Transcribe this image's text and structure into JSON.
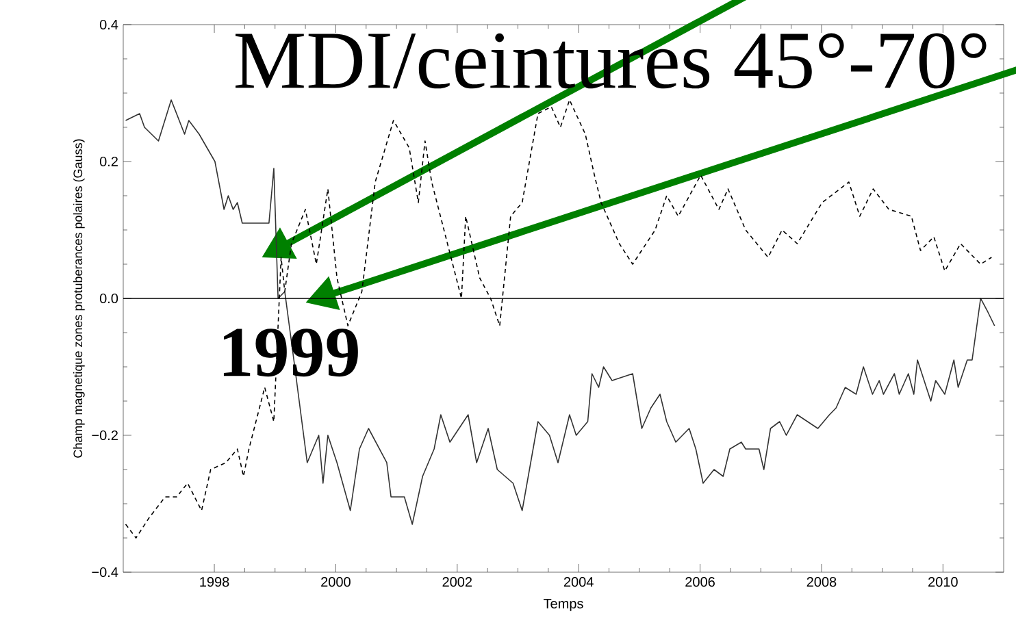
{
  "chart_data": {
    "type": "line",
    "title": "MDI/ceintures 45°-70°",
    "xlabel": "Temps",
    "ylabel": "Champ magnetique zones protuberances polaires (Gauss)",
    "xlim": [
      1996.5,
      2011
    ],
    "ylim": [
      -0.4,
      0.4
    ],
    "xticks": [
      1998,
      2000,
      2002,
      2004,
      2006,
      2008,
      2010
    ],
    "yticks": [
      {
        "value": -0.4,
        "label": "−0.4"
      },
      {
        "value": -0.2,
        "label": "−0.2"
      },
      {
        "value": 0,
        "label": "0.0"
      },
      {
        "value": 0.2,
        "label": "0.2"
      },
      {
        "value": 0.4,
        "label": "0.4"
      }
    ],
    "ref_lines": [
      {
        "axis": "y",
        "value": 0,
        "color": "#000000",
        "line_style": "solid"
      }
    ],
    "annotations": [
      {
        "text": "1999",
        "x": 1999.1,
        "y": 0.0
      }
    ],
    "grid": false,
    "marker": "none",
    "series": [
      {
        "color": "#333333",
        "line_style": "solid",
        "x": [
          1996.54,
          1996.77,
          1996.85,
          1997.08,
          1997.29,
          1997.51,
          1997.58,
          1997.75,
          1998.01,
          1998.16,
          1998.23,
          1998.31,
          1998.38,
          1998.46,
          1998.9,
          1998.98,
          1999.05,
          1999.16,
          1999.31,
          1999.53,
          1999.72,
          1999.79,
          1999.87,
          2000.02,
          2000.24,
          2000.39,
          2000.54,
          2000.84,
          2000.91,
          2001.13,
          2001.26,
          2001.43,
          2001.62,
          2001.73,
          2001.88,
          2002.03,
          2002.18,
          2002.32,
          2002.51,
          2002.66,
          2002.92,
          2003.07,
          2003.33,
          2003.52,
          2003.66,
          2003.85,
          2003.96,
          2004.15,
          2004.22,
          2004.33,
          2004.41,
          2004.55,
          2004.89,
          2005.04,
          2005.19,
          2005.34,
          2005.45,
          2005.6,
          2005.82,
          2005.93,
          2006.05,
          2006.23,
          2006.38,
          2006.49,
          2006.68,
          2006.75,
          2006.97,
          2007.05,
          2007.16,
          2007.31,
          2007.42,
          2007.6,
          2007.94,
          2008.13,
          2008.24,
          2008.39,
          2008.57,
          2008.69,
          2008.84,
          2008.95,
          2009.02,
          2009.2,
          2009.28,
          2009.43,
          2009.52,
          2009.58,
          2009.8,
          2009.88,
          2010.03,
          2010.18,
          2010.25,
          2010.4,
          2010.48,
          2010.62,
          2010.74,
          2010.85
        ],
        "values": [
          0.26,
          0.27,
          0.25,
          0.23,
          0.29,
          0.24,
          0.26,
          0.24,
          0.2,
          0.13,
          0.15,
          0.13,
          0.14,
          0.11,
          0.11,
          0.19,
          0.0,
          0.01,
          -0.09,
          -0.24,
          -0.2,
          -0.27,
          -0.2,
          -0.24,
          -0.31,
          -0.22,
          -0.19,
          -0.24,
          -0.29,
          -0.29,
          -0.33,
          -0.26,
          -0.22,
          -0.17,
          -0.21,
          -0.19,
          -0.17,
          -0.24,
          -0.19,
          -0.25,
          -0.27,
          -0.31,
          -0.18,
          -0.2,
          -0.24,
          -0.17,
          -0.2,
          -0.18,
          -0.11,
          -0.13,
          -0.1,
          -0.12,
          -0.11,
          -0.19,
          -0.16,
          -0.14,
          -0.18,
          -0.21,
          -0.19,
          -0.22,
          -0.27,
          -0.25,
          -0.26,
          -0.22,
          -0.21,
          -0.22,
          -0.22,
          -0.25,
          -0.19,
          -0.18,
          -0.2,
          -0.17,
          -0.19,
          -0.17,
          -0.16,
          -0.13,
          -0.14,
          -0.1,
          -0.14,
          -0.12,
          -0.14,
          -0.11,
          -0.14,
          -0.11,
          -0.14,
          -0.09,
          -0.15,
          -0.12,
          -0.14,
          -0.09,
          -0.13,
          -0.09,
          -0.09,
          0.0,
          -0.02,
          -0.04
        ]
      },
      {
        "color": "#000000",
        "line_style": "dashed",
        "x": [
          1996.54,
          1996.71,
          1996.93,
          1997.19,
          1997.38,
          1997.56,
          1997.79,
          1997.94,
          1998.19,
          1998.38,
          1998.48,
          1998.57,
          1998.83,
          1998.98,
          1999.05,
          1999.1,
          1999.16,
          1999.27,
          1999.5,
          1999.68,
          1999.87,
          2000.02,
          2000.2,
          2000.43,
          2000.65,
          2000.95,
          2001.21,
          2001.36,
          2001.47,
          2001.58,
          2001.84,
          2002.07,
          2002.14,
          2002.37,
          2002.55,
          2002.7,
          2002.88,
          2003.07,
          2003.33,
          2003.55,
          2003.7,
          2003.85,
          2004.11,
          2004.26,
          2004.37,
          2004.67,
          2004.89,
          2005.26,
          2005.45,
          2005.64,
          2006.01,
          2006.31,
          2006.46,
          2006.75,
          2007.12,
          2007.35,
          2007.6,
          2008.01,
          2008.45,
          2008.63,
          2008.85,
          2009.11,
          2009.48,
          2009.63,
          2009.85,
          2010.03,
          2010.29,
          2010.62,
          2010.8
        ],
        "values": [
          -0.33,
          -0.35,
          -0.32,
          -0.29,
          -0.29,
          -0.27,
          -0.31,
          -0.25,
          -0.24,
          -0.22,
          -0.26,
          -0.22,
          -0.13,
          -0.18,
          -0.04,
          0.06,
          0.01,
          0.08,
          0.13,
          0.05,
          0.16,
          0.03,
          -0.04,
          0.01,
          0.17,
          0.26,
          0.22,
          0.14,
          0.23,
          0.17,
          0.08,
          0.0,
          0.12,
          0.03,
          0.0,
          -0.04,
          0.12,
          0.14,
          0.27,
          0.28,
          0.25,
          0.29,
          0.24,
          0.18,
          0.14,
          0.08,
          0.05,
          0.1,
          0.15,
          0.12,
          0.18,
          0.13,
          0.16,
          0.1,
          0.06,
          0.1,
          0.08,
          0.14,
          0.17,
          0.12,
          0.16,
          0.13,
          0.12,
          0.07,
          0.09,
          0.04,
          0.08,
          0.05,
          0.06
        ]
      }
    ]
  }
}
